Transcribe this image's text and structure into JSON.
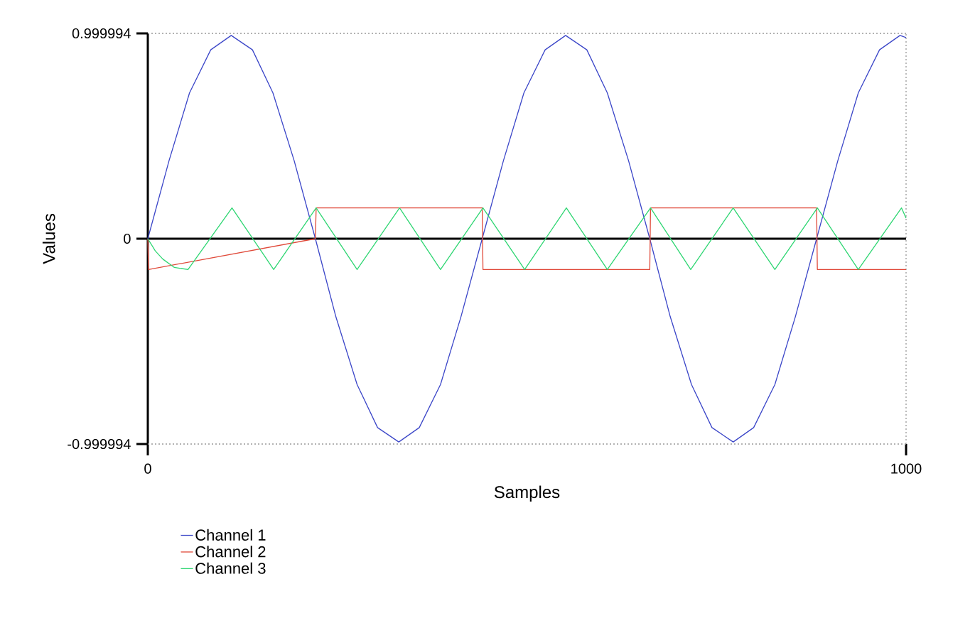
{
  "chart_data": {
    "type": "line",
    "xlabel": "Samples",
    "ylabel": "Values",
    "xlim": [
      0,
      1000
    ],
    "ylim": [
      -0.999994,
      0.999994
    ],
    "xticks": [
      0,
      1000
    ],
    "yticks": [
      -0.999994,
      0,
      0.999994
    ],
    "grid": true,
    "legend": "bottom",
    "marker": "none",
    "line_style": "solid",
    "series": [
      {
        "name": "Channel 1",
        "color": "#3b46c8",
        "x": [
          0,
          28,
          55,
          83,
          110,
          138,
          165,
          193,
          221,
          248,
          276,
          303,
          331,
          358,
          386,
          413,
          441,
          469,
          496,
          524,
          551,
          579,
          606,
          634,
          662,
          689,
          717,
          744,
          772,
          799,
          827,
          854,
          882,
          910,
          937,
          965,
          992,
          1000
        ],
        "values": [
          0,
          0.38,
          0.71,
          0.92,
          0.99,
          0.92,
          0.71,
          0.38,
          0,
          -0.38,
          -0.71,
          -0.92,
          -0.99,
          -0.92,
          -0.71,
          -0.38,
          0,
          0.38,
          0.71,
          0.92,
          0.99,
          0.92,
          0.71,
          0.38,
          0,
          -0.38,
          -0.71,
          -0.92,
          -0.99,
          -0.92,
          -0.71,
          -0.38,
          0,
          0.38,
          0.71,
          0.92,
          0.99,
          0.98
        ]
      },
      {
        "name": "Channel 2",
        "color": "#e04a3a",
        "x": [
          0,
          1,
          221,
          222,
          441,
          442,
          662,
          663,
          882,
          883,
          1000
        ],
        "values": [
          0,
          -0.15,
          0,
          0.15,
          0.15,
          -0.15,
          -0.15,
          0.15,
          0.15,
          -0.15,
          -0.15
        ]
      },
      {
        "name": "Channel 3",
        "color": "#2ed672",
        "x": [
          0,
          10,
          20,
          35,
          53,
          111,
          166,
          222,
          276,
          332,
          386,
          442,
          497,
          552,
          606,
          663,
          716,
          772,
          827,
          883,
          937,
          994,
          1000
        ],
        "values": [
          0,
          -0.06,
          -0.1,
          -0.14,
          -0.15,
          0.15,
          -0.15,
          0.15,
          -0.15,
          0.15,
          -0.15,
          0.15,
          -0.15,
          0.15,
          -0.15,
          0.15,
          -0.15,
          0.15,
          -0.15,
          0.15,
          -0.15,
          0.15,
          0.1
        ]
      }
    ]
  }
}
